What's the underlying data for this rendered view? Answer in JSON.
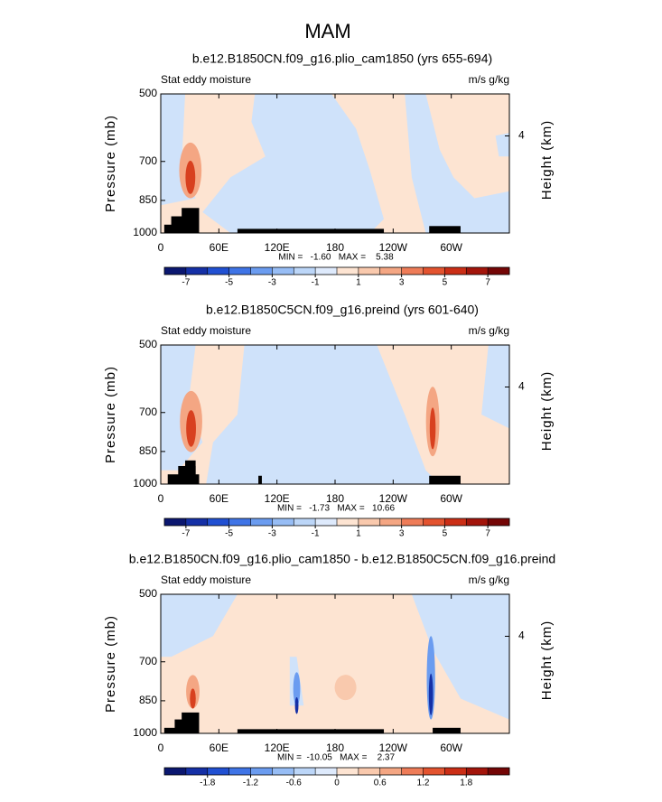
{
  "title": "MAM",
  "chart_data": [
    {
      "type": "contour",
      "title": "b.e12.B1850CN.f09_g16.plio_cam1850 (yrs 655-694)",
      "left_label": "Stat eddy moisture",
      "right_label": "m/s g/kg",
      "ylabel": "Pressure (mb)",
      "y2label": "Height (km)",
      "xlim": [
        0,
        360
      ],
      "xticks": [
        0,
        {
          "value": 60,
          "label": "60E"
        },
        {
          "value": 120,
          "label": "120E"
        },
        180,
        {
          "value": 240,
          "label": "120W"
        },
        {
          "value": 300,
          "label": "60W"
        }
      ],
      "ylim": [
        1000,
        500
      ],
      "yscale": "log",
      "yticks": [
        500,
        700,
        850,
        1000
      ],
      "y2ticks": [
        4
      ],
      "stats": "MIN =   -1.60   MAX =    5.38",
      "colorbar": {
        "levels": [
          -7,
          -6,
          -5,
          -4,
          -3,
          -2,
          -1,
          0,
          1,
          2,
          3,
          4,
          5,
          6,
          7
        ],
        "ticks": [
          -7,
          -5,
          -3,
          -1,
          1,
          3,
          5,
          7
        ],
        "colors": [
          "#0b1770",
          "#1530a6",
          "#2150d2",
          "#3f74e6",
          "#6b9cf0",
          "#97bdf5",
          "#bcd6f8",
          "#deeafc",
          "#fde4d2",
          "#f9c9ad",
          "#f4a683",
          "#ee7c58",
          "#e3532f",
          "#cb2e16",
          "#a3150b",
          "#740606"
        ]
      }
    },
    {
      "type": "contour",
      "title": "b.e12.B1850C5CN.f09_g16.preind (yrs 601-640)",
      "left_label": "Stat eddy moisture",
      "right_label": "m/s g/kg",
      "ylabel": "Pressure (mb)",
      "y2label": "Height (km)",
      "xlim": [
        0,
        360
      ],
      "xticks": [
        0,
        {
          "value": 60,
          "label": "60E"
        },
        {
          "value": 120,
          "label": "120E"
        },
        180,
        {
          "value": 240,
          "label": "120W"
        },
        {
          "value": 300,
          "label": "60W"
        }
      ],
      "ylim": [
        1000,
        500
      ],
      "yscale": "log",
      "yticks": [
        500,
        700,
        850,
        1000
      ],
      "y2ticks": [
        4
      ],
      "stats": "MIN =   -1.73   MAX =   10.66",
      "colorbar": {
        "levels": [
          -7,
          -6,
          -5,
          -4,
          -3,
          -2,
          -1,
          0,
          1,
          2,
          3,
          4,
          5,
          6,
          7
        ],
        "ticks": [
          -7,
          -5,
          -3,
          -1,
          1,
          3,
          5,
          7
        ],
        "colors": [
          "#0b1770",
          "#1530a6",
          "#2150d2",
          "#3f74e6",
          "#6b9cf0",
          "#97bdf5",
          "#bcd6f8",
          "#deeafc",
          "#fde4d2",
          "#f9c9ad",
          "#f4a683",
          "#ee7c58",
          "#e3532f",
          "#cb2e16",
          "#a3150b",
          "#740606"
        ]
      }
    },
    {
      "type": "contour",
      "title": "b.e12.B1850CN.f09_g16.plio_cam1850 - b.e12.B1850C5CN.f09_g16.preind",
      "left_label": "Stat eddy moisture",
      "right_label": "m/s g/kg",
      "ylabel": "Pressure (mb)",
      "y2label": "Height (km)",
      "xlim": [
        0,
        360
      ],
      "xticks": [
        0,
        {
          "value": 60,
          "label": "60E"
        },
        {
          "value": 120,
          "label": "120E"
        },
        180,
        {
          "value": 240,
          "label": "120W"
        },
        {
          "value": 300,
          "label": "60W"
        }
      ],
      "ylim": [
        1000,
        500
      ],
      "yscale": "log",
      "yticks": [
        500,
        700,
        850,
        1000
      ],
      "y2ticks": [
        4
      ],
      "stats": "MIN =  -10.05   MAX =    2.37",
      "colorbar": {
        "levels": [
          -2.1,
          -1.8,
          -1.5,
          -1.2,
          -0.9,
          -0.6,
          -0.3,
          0,
          0.3,
          0.6,
          0.9,
          1.2,
          1.5,
          1.8,
          2.1
        ],
        "ticks": [
          -1.8,
          -1.2,
          -0.6,
          0,
          0.6,
          1.2,
          1.8
        ],
        "colors": [
          "#0b1770",
          "#1530a6",
          "#2150d2",
          "#3f74e6",
          "#6b9cf0",
          "#97bdf5",
          "#bcd6f8",
          "#deeafc",
          "#fde4d2",
          "#f9c9ad",
          "#f4a683",
          "#ee7c58",
          "#e3532f",
          "#cb2e16",
          "#a3150b",
          "#740606"
        ]
      }
    }
  ]
}
